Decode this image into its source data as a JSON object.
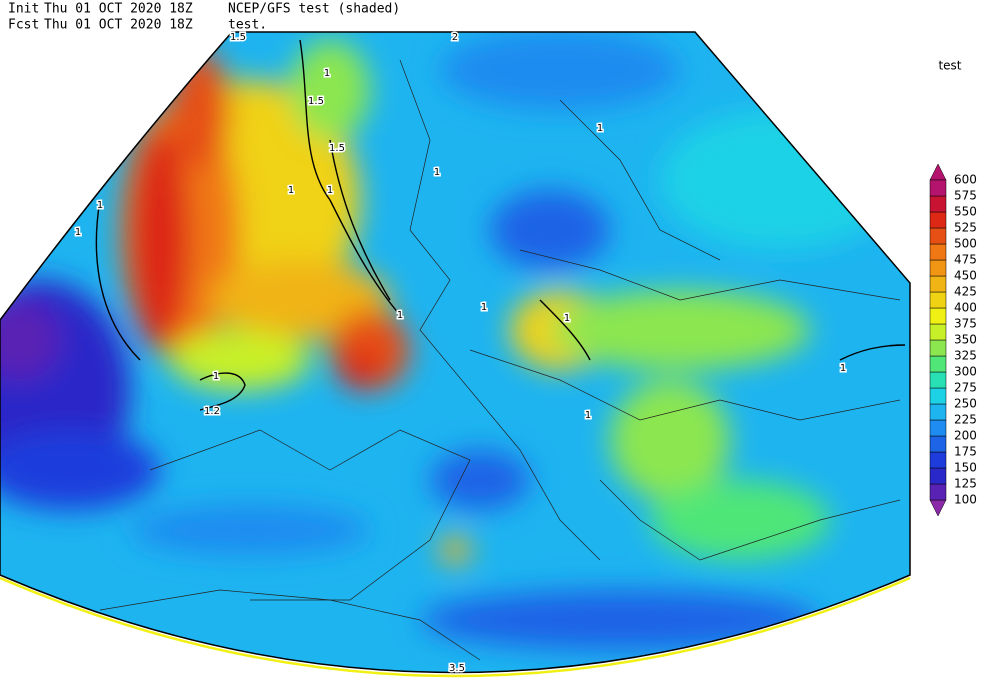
{
  "header": {
    "init_label": "Init",
    "init_time": "Thu 01 OCT 2020 18Z",
    "title": "NCEP/GFS test (shaded)",
    "fcst_label": "Fcst",
    "fcst_time": "Thu 01 OCT 2020 18Z",
    "subtitle": "test."
  },
  "legend": {
    "title": "test",
    "levels": [
      100,
      125,
      150,
      175,
      200,
      225,
      250,
      275,
      300,
      325,
      350,
      375,
      400,
      425,
      450,
      475,
      500,
      525,
      550,
      575,
      600
    ],
    "colors": [
      "#8a2aa8",
      "#5a22b4",
      "#2a28c8",
      "#1e3cdc",
      "#1e64e6",
      "#1e8cf0",
      "#1eb4f0",
      "#1ed2e6",
      "#28e0b4",
      "#50e678",
      "#8ce650",
      "#c8f028",
      "#f0f014",
      "#f0d214",
      "#f0b414",
      "#f09614",
      "#f07814",
      "#e65014",
      "#dc2814",
      "#c81432",
      "#b4146e"
    ]
  },
  "contour_labels": [
    1.5,
    2,
    1,
    1.5,
    1.5,
    1,
    1,
    1,
    1,
    1,
    1,
    1,
    1,
    1,
    1,
    1.2,
    1,
    1,
    3.5
  ]
}
